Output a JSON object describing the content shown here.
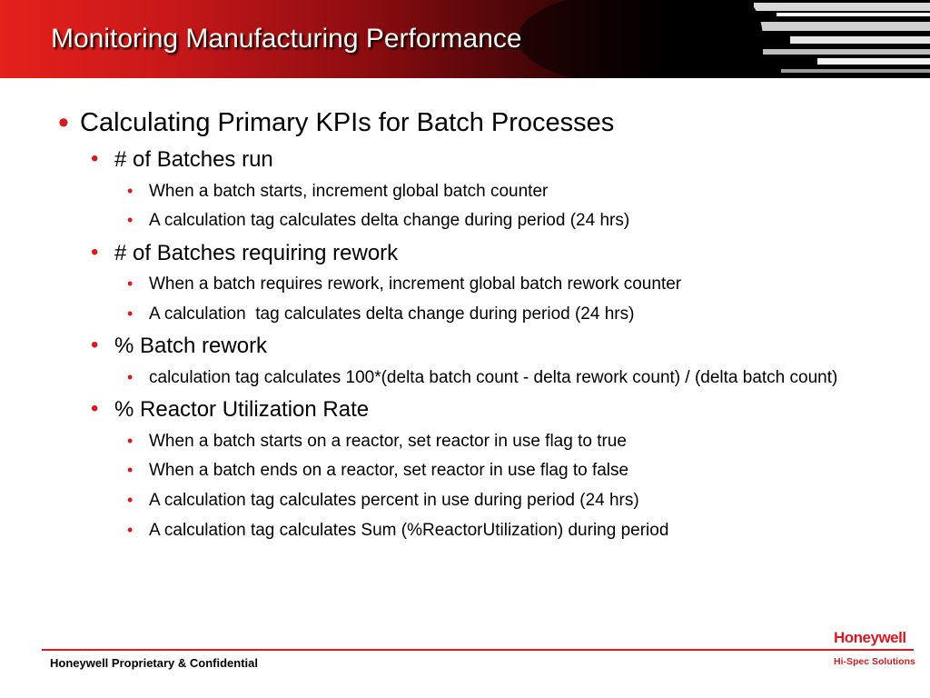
{
  "slide": {
    "title": "Monitoring Manufacturing Performance",
    "sections": [
      {
        "heading": "Calculating Primary KPIs for Batch Processes",
        "items": [
          {
            "label": "# of Batches run",
            "details": [
              "When a batch starts, increment global batch counter",
              "A calculation tag calculates delta change during period (24 hrs)"
            ]
          },
          {
            "label": "# of Batches requiring rework",
            "details": [
              "When a batch requires rework, increment global batch rework counter",
              "A calculation  tag calculates delta change during period (24 hrs)"
            ]
          },
          {
            "label": "% Batch rework",
            "details": [
              "calculation tag calculates 100*(delta batch count - delta rework count) / (delta batch count)"
            ]
          },
          {
            "label": "% Reactor Utilization Rate",
            "details": [
              "When a batch starts on a reactor, set reactor in use flag to true",
              "When a batch ends on a reactor, set reactor in use flag to false",
              "A calculation tag calculates percent in use during period (24 hrs)",
              "A calculation tag calculates Sum (%ReactorUtilization) during period"
            ]
          }
        ]
      }
    ]
  },
  "footer": {
    "confidential": "Honeywell Proprietary & Confidential",
    "brand": "Honeywell",
    "brand_sub": "Hi-Spec Solutions"
  },
  "colors": {
    "accent": "#d51a21",
    "header_dark": "#000000",
    "header_red": "#e4211b"
  }
}
